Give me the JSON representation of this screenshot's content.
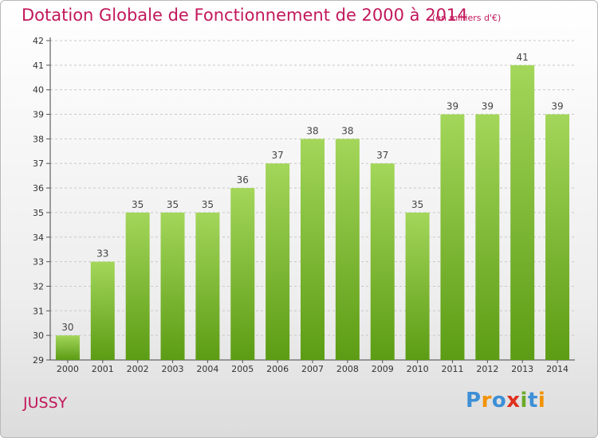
{
  "header": {
    "title": "Dotation Globale de Fonctionnement de 2000 à 2014",
    "unit": "(en milliers d'€)"
  },
  "footer": {
    "commune": "JUSSY",
    "logo_text": "Proxiti"
  },
  "colors": {
    "title": "#c2185b",
    "bar_top": "#a3d65a",
    "bar_bottom": "#5c9c14",
    "grid": "#c8c8c8"
  },
  "chart_data": {
    "type": "bar",
    "title": "Dotation Globale de Fonctionnement de 2000 à 2014",
    "subtitle": "(en milliers d'€)",
    "xlabel": "",
    "ylabel": "",
    "categories": [
      "2000",
      "2001",
      "2002",
      "2003",
      "2004",
      "2005",
      "2006",
      "2007",
      "2008",
      "2009",
      "2010",
      "2011",
      "2012",
      "2013",
      "2014"
    ],
    "values": [
      30,
      33,
      35,
      35,
      35,
      36,
      37,
      38,
      38,
      37,
      35,
      39,
      39,
      41,
      39
    ],
    "ylim": [
      29,
      42
    ],
    "yticks": [
      29,
      30,
      31,
      32,
      33,
      34,
      35,
      36,
      37,
      38,
      39,
      40,
      41,
      42
    ],
    "grid": true,
    "legend": "none"
  }
}
